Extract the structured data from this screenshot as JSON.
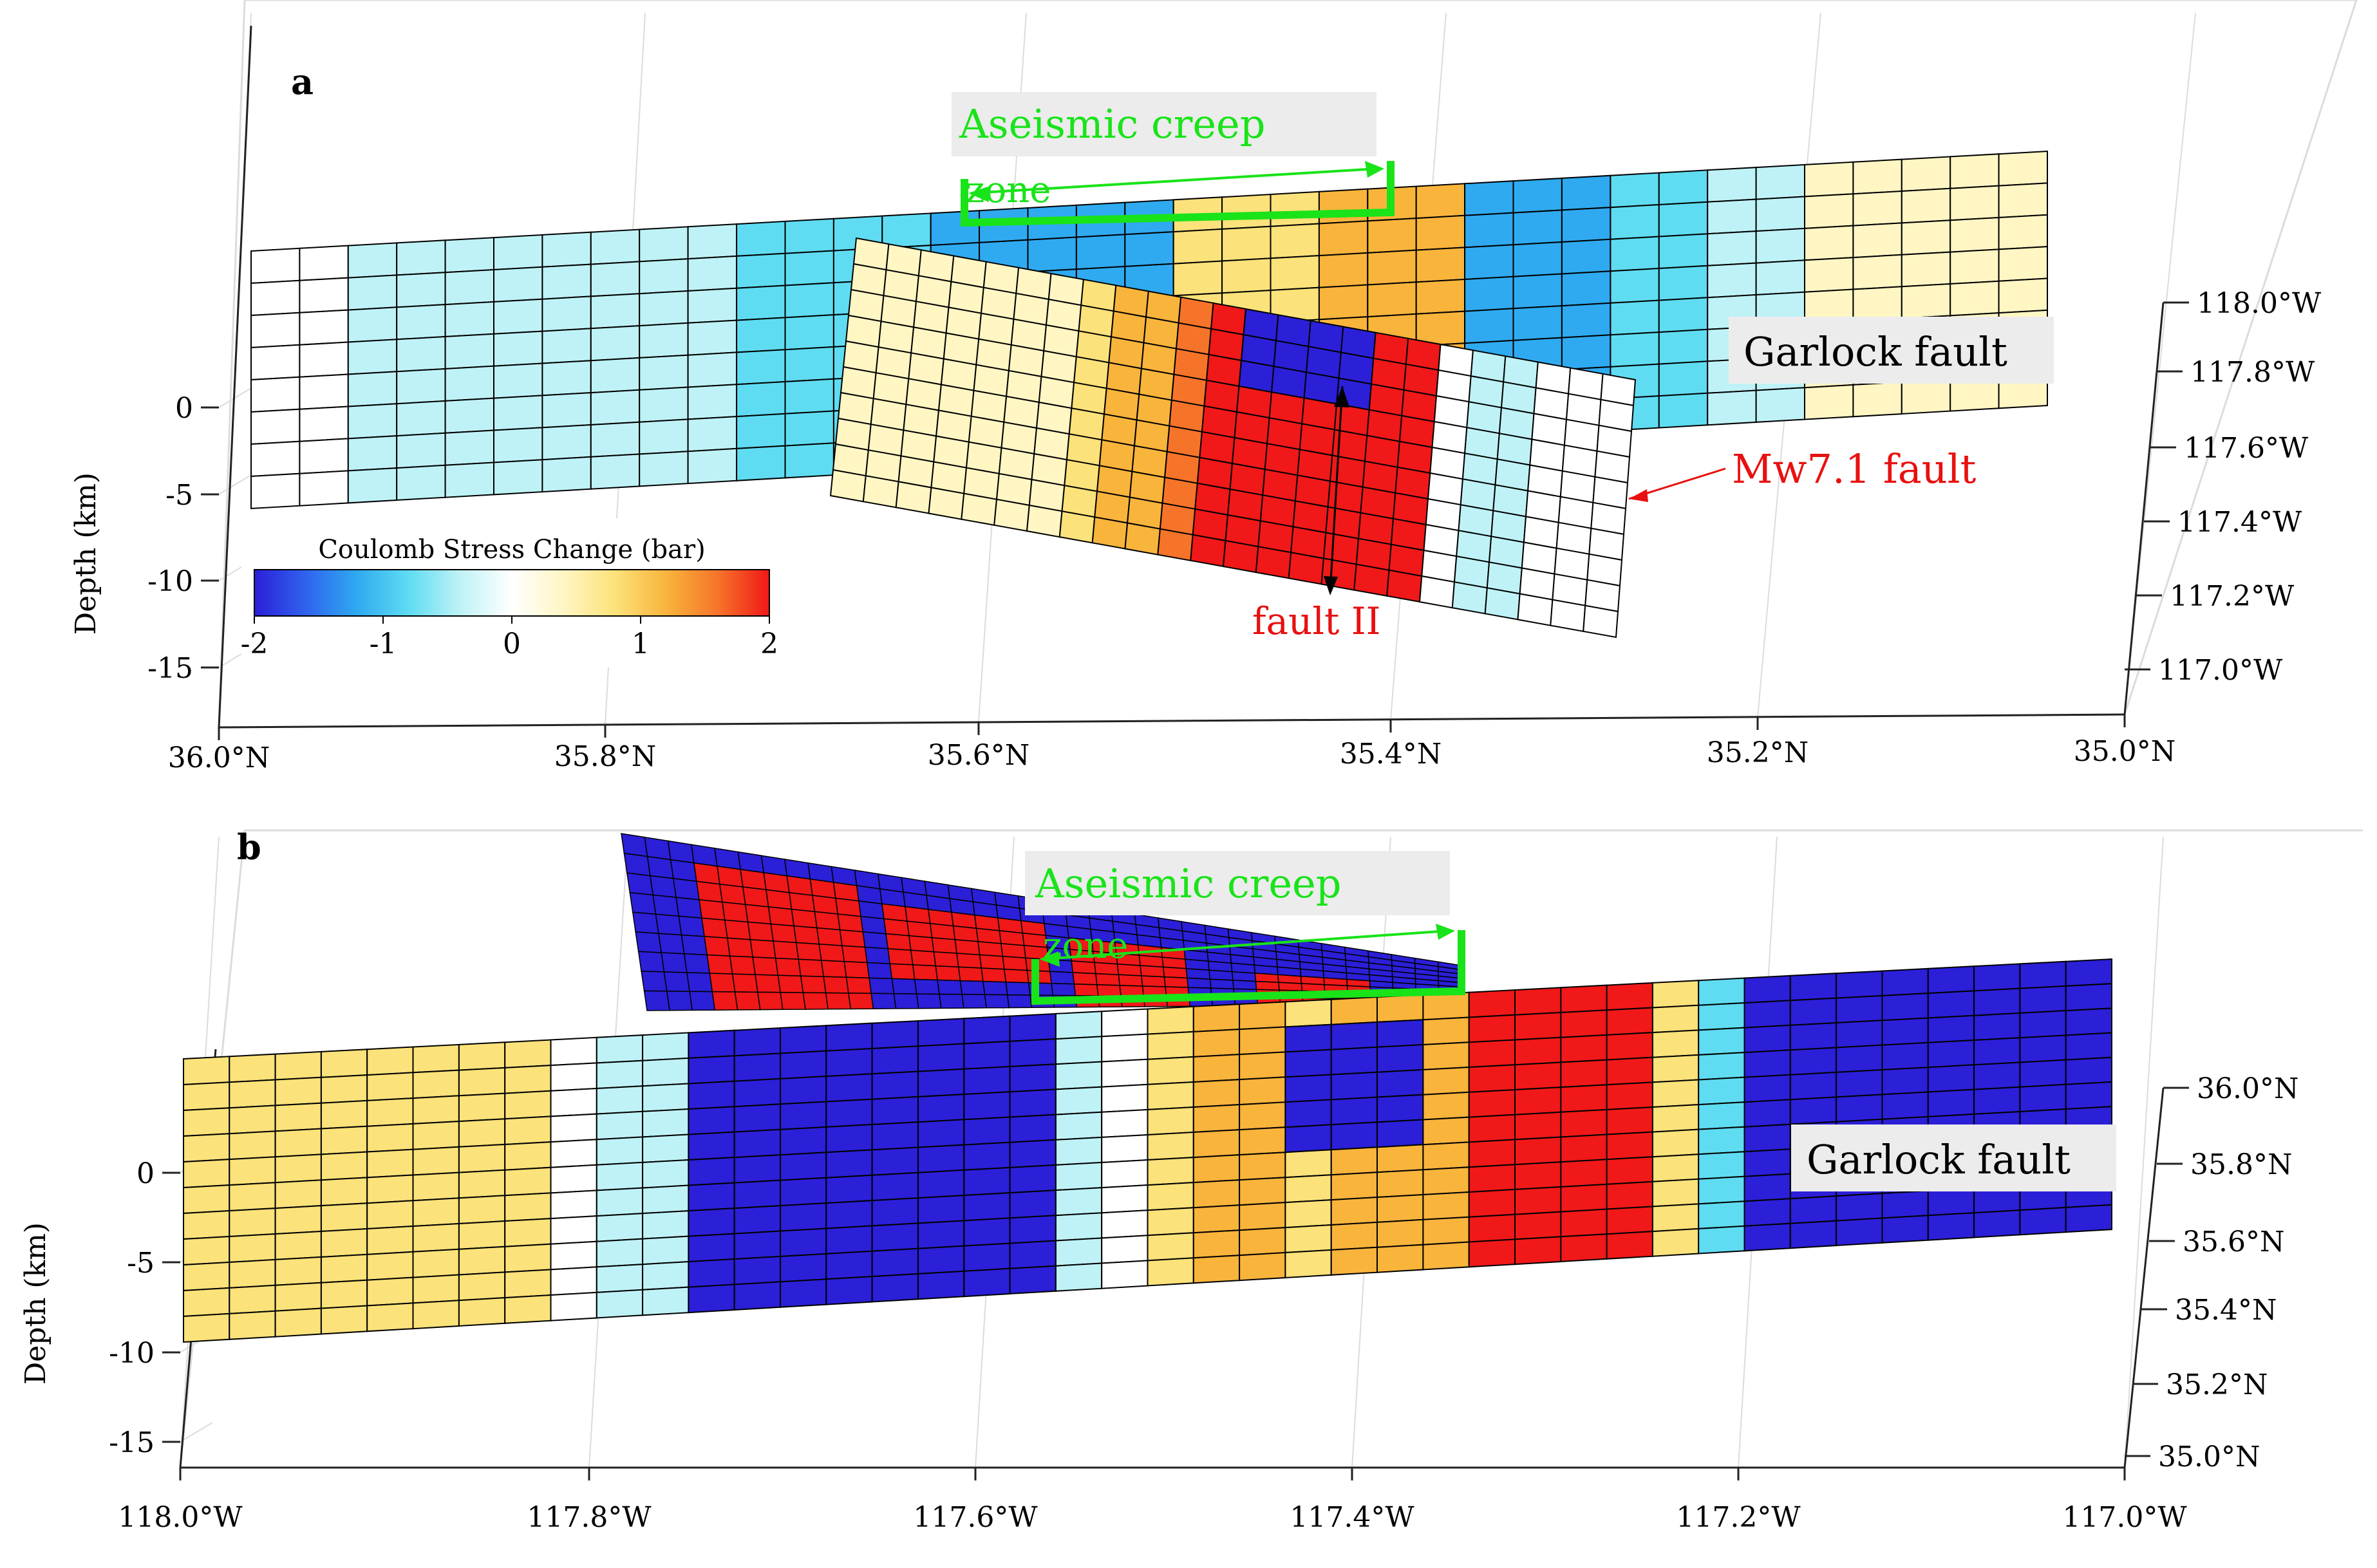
{
  "colors": {
    "cmap": [
      "#2b1fd8",
      "#2f63ee",
      "#2faaf0",
      "#5fdcf2",
      "#bff2f6",
      "#ffffff",
      "#fff6c4",
      "#fbe27a",
      "#f9b43c",
      "#f6742a",
      "#f01818"
    ],
    "creep_green": "#19e319",
    "red_label": "#e81010",
    "label_box": "#ececec",
    "grid_line": "#000000"
  },
  "chart_data": [
    {
      "panel": "a",
      "type": "heatmap",
      "zlabel": "Depth (km)",
      "z_ticks": [
        "0",
        "-5",
        "-10",
        "-15"
      ],
      "x_ticks": [
        "36.0°N",
        "35.8°N",
        "35.6°N",
        "35.4°N",
        "35.2°N",
        "35.0°N"
      ],
      "y_ticks": [
        "118.0°W",
        "117.8°W",
        "117.6°W",
        "117.4°W",
        "117.2°W",
        "117.0°W"
      ],
      "colorbar": {
        "label": "Coulomb Stress Change (bar)",
        "ticks": [
          "-2",
          "-1",
          "0",
          "1",
          "2"
        ],
        "range": [
          -2,
          2
        ]
      },
      "faults": [
        {
          "label": "Garlock fault",
          "cols": 37,
          "rows": 8,
          "bands": [
            {
              "cols": [
                0,
                1
              ],
              "value": 0.1
            },
            {
              "cols": [
                2,
                4
              ],
              "value": -0.3
            },
            {
              "cols": [
                5,
                9
              ],
              "value": -0.5
            },
            {
              "cols": [
                10,
                13
              ],
              "value": -0.9
            },
            {
              "cols": [
                14,
                18
              ],
              "value": -1.1
            },
            {
              "cols": [
                19,
                21
              ],
              "value": 0.9
            },
            {
              "cols": [
                22,
                24
              ],
              "value": 1.2
            },
            {
              "cols": [
                25,
                27
              ],
              "value": -1.1
            },
            {
              "cols": [
                28,
                29
              ],
              "value": -0.8
            },
            {
              "cols": [
                30,
                31
              ],
              "value": -0.4
            },
            {
              "cols": [
                32,
                36
              ],
              "value": 0.3
            }
          ]
        },
        {
          "label": "Mw7.1 fault",
          "cols": 24,
          "rows": 10,
          "bands": [
            {
              "cols": [
                0,
                6
              ],
              "value": 0.2
            },
            {
              "cols": [
                7,
                7
              ],
              "value": 0.6
            },
            {
              "cols": [
                8,
                8
              ],
              "value": 1.0
            },
            {
              "cols": [
                9,
                9
              ],
              "value": 1.3
            },
            {
              "cols": [
                10,
                10
              ],
              "value": 1.6
            },
            {
              "cols": [
                11,
                17
              ],
              "value": 2.0
            },
            {
              "cols": [
                18,
                18
              ],
              "value": -0.2
            },
            {
              "cols": [
                19,
                20
              ],
              "value": -0.5
            },
            {
              "cols": [
                21,
                23
              ],
              "value": 0.1
            }
          ],
          "patch": {
            "cols": [
              12,
              15
            ],
            "rows": [
              0,
              2
            ],
            "value": -2.0
          }
        }
      ],
      "annotations": [
        "a",
        "Aseismic creep",
        "zone",
        "Garlock fault",
        "Mw7.1 fault",
        "fault II"
      ]
    },
    {
      "panel": "b",
      "type": "heatmap",
      "zlabel": "Depth (km)",
      "z_ticks": [
        "0",
        "-5",
        "-10",
        "-15"
      ],
      "x_ticks": [
        "118.0°W",
        "117.8°W",
        "117.6°W",
        "117.4°W",
        "117.2°W",
        "117.0°W"
      ],
      "y_ticks": [
        "36.0°N",
        "35.8°N",
        "35.6°N",
        "35.4°N",
        "35.2°N",
        "35.0°N"
      ],
      "faults": [
        {
          "label": "Garlock fault",
          "cols": 42,
          "rows": 11,
          "bands": [
            {
              "cols": [
                0,
                7
              ],
              "value": 0.8
            },
            {
              "cols": [
                8,
                8
              ],
              "value": 0.0
            },
            {
              "cols": [
                9,
                10
              ],
              "value": -0.6
            },
            {
              "cols": [
                11,
                18
              ],
              "value": -1.9
            },
            {
              "cols": [
                19,
                19
              ],
              "value": -0.5
            },
            {
              "cols": [
                20,
                20
              ],
              "value": -0.2
            },
            {
              "cols": [
                21,
                21
              ],
              "value": 0.9
            },
            {
              "cols": [
                22,
                23
              ],
              "value": 1.3
            },
            {
              "cols": [
                24,
                24
              ],
              "value": 0.8
            },
            {
              "cols": [
                25,
                27
              ],
              "value": 1.1
            },
            {
              "cols": [
                28,
                31
              ],
              "value": 2.0
            },
            {
              "cols": [
                32,
                32
              ],
              "value": 0.6
            },
            {
              "cols": [
                33,
                33
              ],
              "value": -0.7
            },
            {
              "cols": [
                34,
                41
              ],
              "value": -1.9
            }
          ],
          "patch": {
            "cols": [
              24,
              26
            ],
            "rows": [
              1,
              5
            ],
            "value": -1.8
          }
        }
      ],
      "annotations": [
        "b",
        "Aseismic creep",
        "zone",
        "Garlock fault"
      ]
    }
  ]
}
